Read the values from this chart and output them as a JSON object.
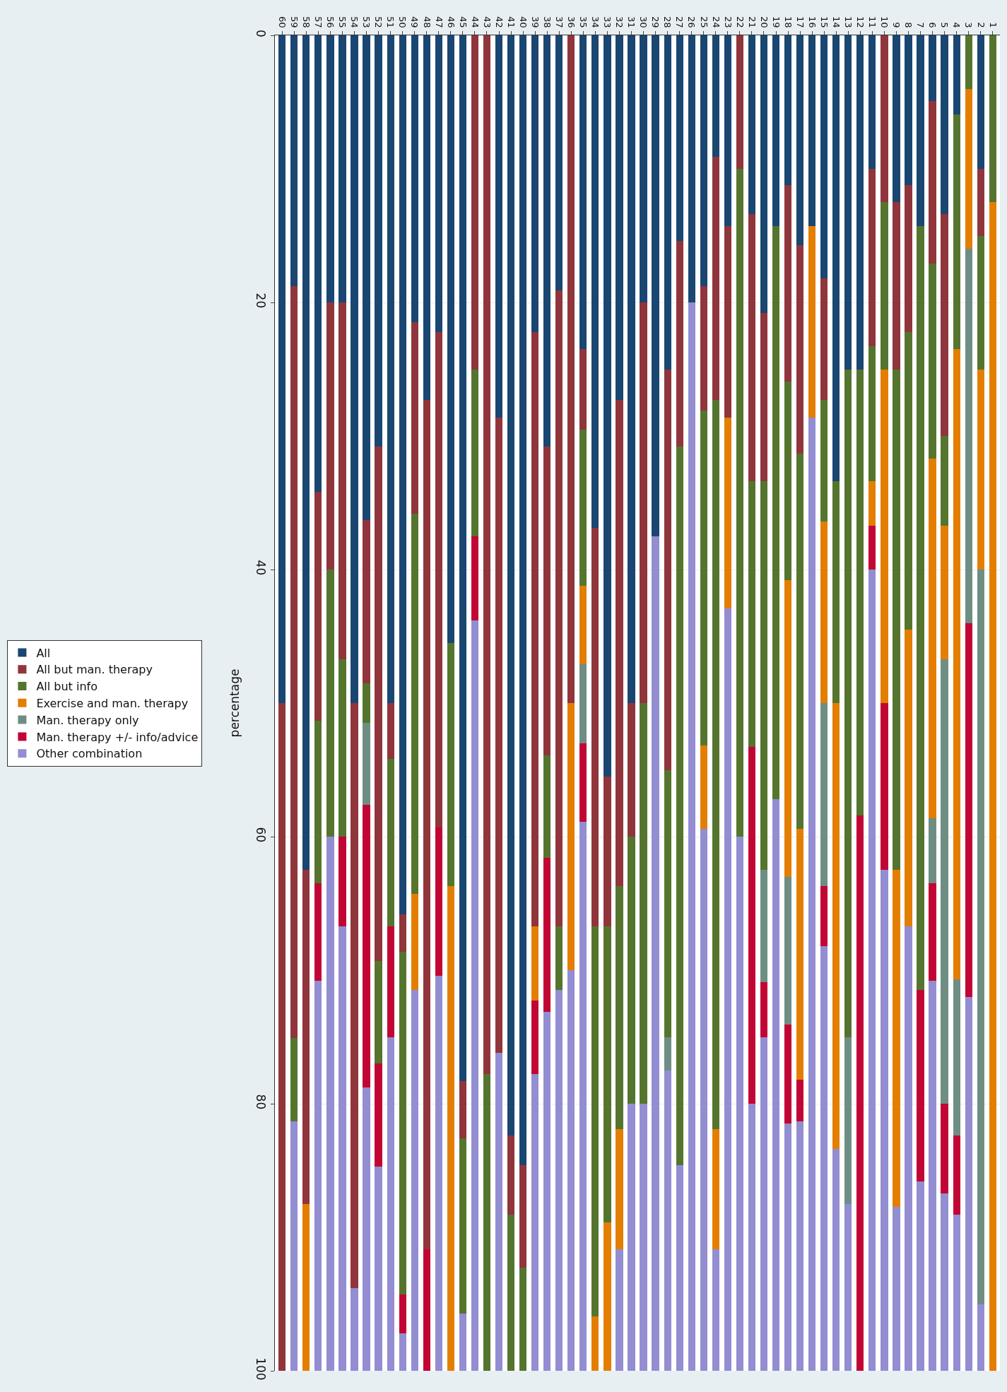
{
  "chart_data": {
    "type": "bar",
    "stacked": true,
    "ylabel": "percentage",
    "categories": [
      "60",
      "59",
      "58",
      "57",
      "56",
      "55",
      "54",
      "53",
      "52",
      "51",
      "50",
      "49",
      "48",
      "47",
      "46",
      "45",
      "44",
      "43",
      "42",
      "41",
      "40",
      "39",
      "38",
      "37",
      "36",
      "35",
      "34",
      "33",
      "32",
      "31",
      "30",
      "29",
      "28",
      "27",
      "26",
      "25",
      "24",
      "23",
      "22",
      "21",
      "20",
      "19",
      "18",
      "17",
      "16",
      "15",
      "14",
      "13",
      "12",
      "11",
      "10",
      "9",
      "8",
      "7",
      "6",
      "5",
      "4",
      "3",
      "2",
      "1"
    ],
    "series": [
      {
        "name": "All",
        "color": "#1a4672",
        "values": [
          50,
          18.8,
          62.5,
          34.2,
          20,
          20,
          50,
          36.3,
          30.8,
          50,
          65.8,
          21.5,
          27.3,
          22.2,
          45.5,
          78.3,
          0,
          0,
          28.6,
          82.4,
          84.6,
          22.2,
          30.8,
          19.1,
          0,
          23.5,
          36.9,
          55.5,
          27.3,
          50,
          20,
          37.5,
          25,
          15.4,
          20,
          18.8,
          9.1,
          14.3,
          0,
          13.4,
          20.8,
          14.3,
          11.2,
          15.7,
          14.3,
          18.2,
          33.4,
          25,
          25,
          10,
          0,
          12.5,
          11.2,
          14.3,
          4.9,
          13.4,
          5.9,
          0,
          10,
          0
        ]
      },
      {
        "name": "All but man. therapy",
        "color": "#90353b",
        "values": [
          50,
          56.3,
          25,
          17.1,
          20,
          26.7,
          43.8,
          12.2,
          38.5,
          4.2,
          2.8,
          14.3,
          63.6,
          37.1,
          0,
          4.3,
          25,
          77.8,
          47.6,
          5.9,
          7.7,
          44.5,
          23.1,
          47.6,
          50,
          6,
          29.8,
          11.2,
          36.4,
          10,
          30,
          0,
          30,
          15.4,
          0,
          9.3,
          18.2,
          14.3,
          10,
          20,
          12.6,
          0,
          14.7,
          15.6,
          0,
          9.1,
          0,
          0,
          0,
          13.3,
          12.5,
          12.5,
          11,
          0,
          12.2,
          16.6,
          0,
          0,
          5,
          0
        ]
      },
      {
        "name": "All but info",
        "color": "#55752f",
        "values": [
          0,
          6.2,
          0,
          12.2,
          20,
          13.3,
          0,
          3,
          7.7,
          12.5,
          25.7,
          28.5,
          0,
          0,
          18.2,
          13.1,
          12.5,
          22.2,
          0,
          11.7,
          7.7,
          0,
          7.7,
          4.8,
          0,
          11.7,
          29.2,
          22.2,
          18.2,
          20,
          30,
          0,
          20,
          53.8,
          0,
          25.1,
          54.6,
          0,
          50,
          19.9,
          29.1,
          42.9,
          14.9,
          28.1,
          0,
          9.1,
          16.6,
          50,
          33.4,
          10.1,
          12.5,
          37.5,
          22.3,
          57.2,
          14.6,
          6.7,
          17.6,
          4,
          10,
          12.5
        ]
      },
      {
        "name": "Exercise and man. therapy",
        "color": "#e37e00",
        "values": [
          0,
          0,
          12.5,
          0,
          0,
          0,
          0,
          0,
          0,
          0,
          0,
          7.2,
          0,
          0,
          36.3,
          0,
          0,
          0,
          0,
          0,
          0,
          5.6,
          0,
          0,
          20,
          5.9,
          4.1,
          11.1,
          9,
          0,
          0,
          0,
          0,
          0,
          0,
          6.2,
          9,
          14.3,
          0,
          0,
          0,
          0,
          22.2,
          18.8,
          14.3,
          13.6,
          33.4,
          0,
          0,
          3.3,
          25,
          25.2,
          22.2,
          0,
          26.9,
          10,
          47.2,
          12,
          15,
          87.5
        ]
      },
      {
        "name": "Man. therapy only",
        "color": "#6e8e84",
        "values": [
          0,
          0,
          0,
          0,
          0,
          0,
          0,
          6.1,
          0,
          0,
          0,
          0,
          0,
          0,
          0,
          0,
          0,
          0,
          0,
          0,
          0,
          0,
          0,
          0,
          0,
          5.9,
          0,
          0,
          0,
          0,
          0,
          0,
          2.5,
          0,
          0,
          0,
          0,
          0,
          0,
          0,
          8.4,
          0,
          11.1,
          0,
          0,
          13.7,
          0,
          12.5,
          0,
          0,
          0,
          0,
          0,
          0,
          4.9,
          33.3,
          11.7,
          28,
          55,
          0
        ]
      },
      {
        "name": "Man. therapy +/- info/advice",
        "color": "#c10534",
        "values": [
          0,
          0,
          0,
          7.3,
          0,
          6.7,
          0,
          21.2,
          7.7,
          8.3,
          2.9,
          0,
          9.1,
          11.1,
          0,
          0,
          6.3,
          0,
          0,
          0,
          0,
          5.5,
          11.5,
          0,
          0,
          5.9,
          0,
          0,
          0,
          0,
          0,
          0,
          0,
          0,
          0,
          0,
          0,
          0,
          0,
          26.7,
          4.1,
          0,
          7.4,
          3.1,
          0,
          4.5,
          0,
          0,
          41.6,
          3.3,
          12.5,
          0,
          0,
          14.3,
          7.3,
          6.7,
          5.9,
          28,
          0,
          0
        ]
      },
      {
        "name": "Other combination",
        "color": "#938dd2",
        "values": [
          0,
          18.7,
          0,
          29.2,
          40,
          33.3,
          6.2,
          21.2,
          15.3,
          25,
          2.8,
          28.5,
          0,
          29.6,
          0,
          4.3,
          56.2,
          0,
          23.8,
          0,
          0,
          22.2,
          26.9,
          28.5,
          30,
          41.1,
          0,
          0,
          9.1,
          20,
          20,
          62.5,
          22.5,
          15.4,
          80,
          40.6,
          9.1,
          57.1,
          40,
          20,
          25,
          42.8,
          18.5,
          18.7,
          71.4,
          31.8,
          16.6,
          12.5,
          0,
          60,
          37.5,
          12.3,
          33.3,
          14.2,
          29.2,
          13.3,
          11.7,
          28,
          5,
          0
        ]
      }
    ],
    "ylim": [
      100,
      0
    ],
    "yticks": [
      0,
      20,
      40,
      60,
      80,
      100
    ],
    "grid": "y",
    "legend": "left"
  }
}
